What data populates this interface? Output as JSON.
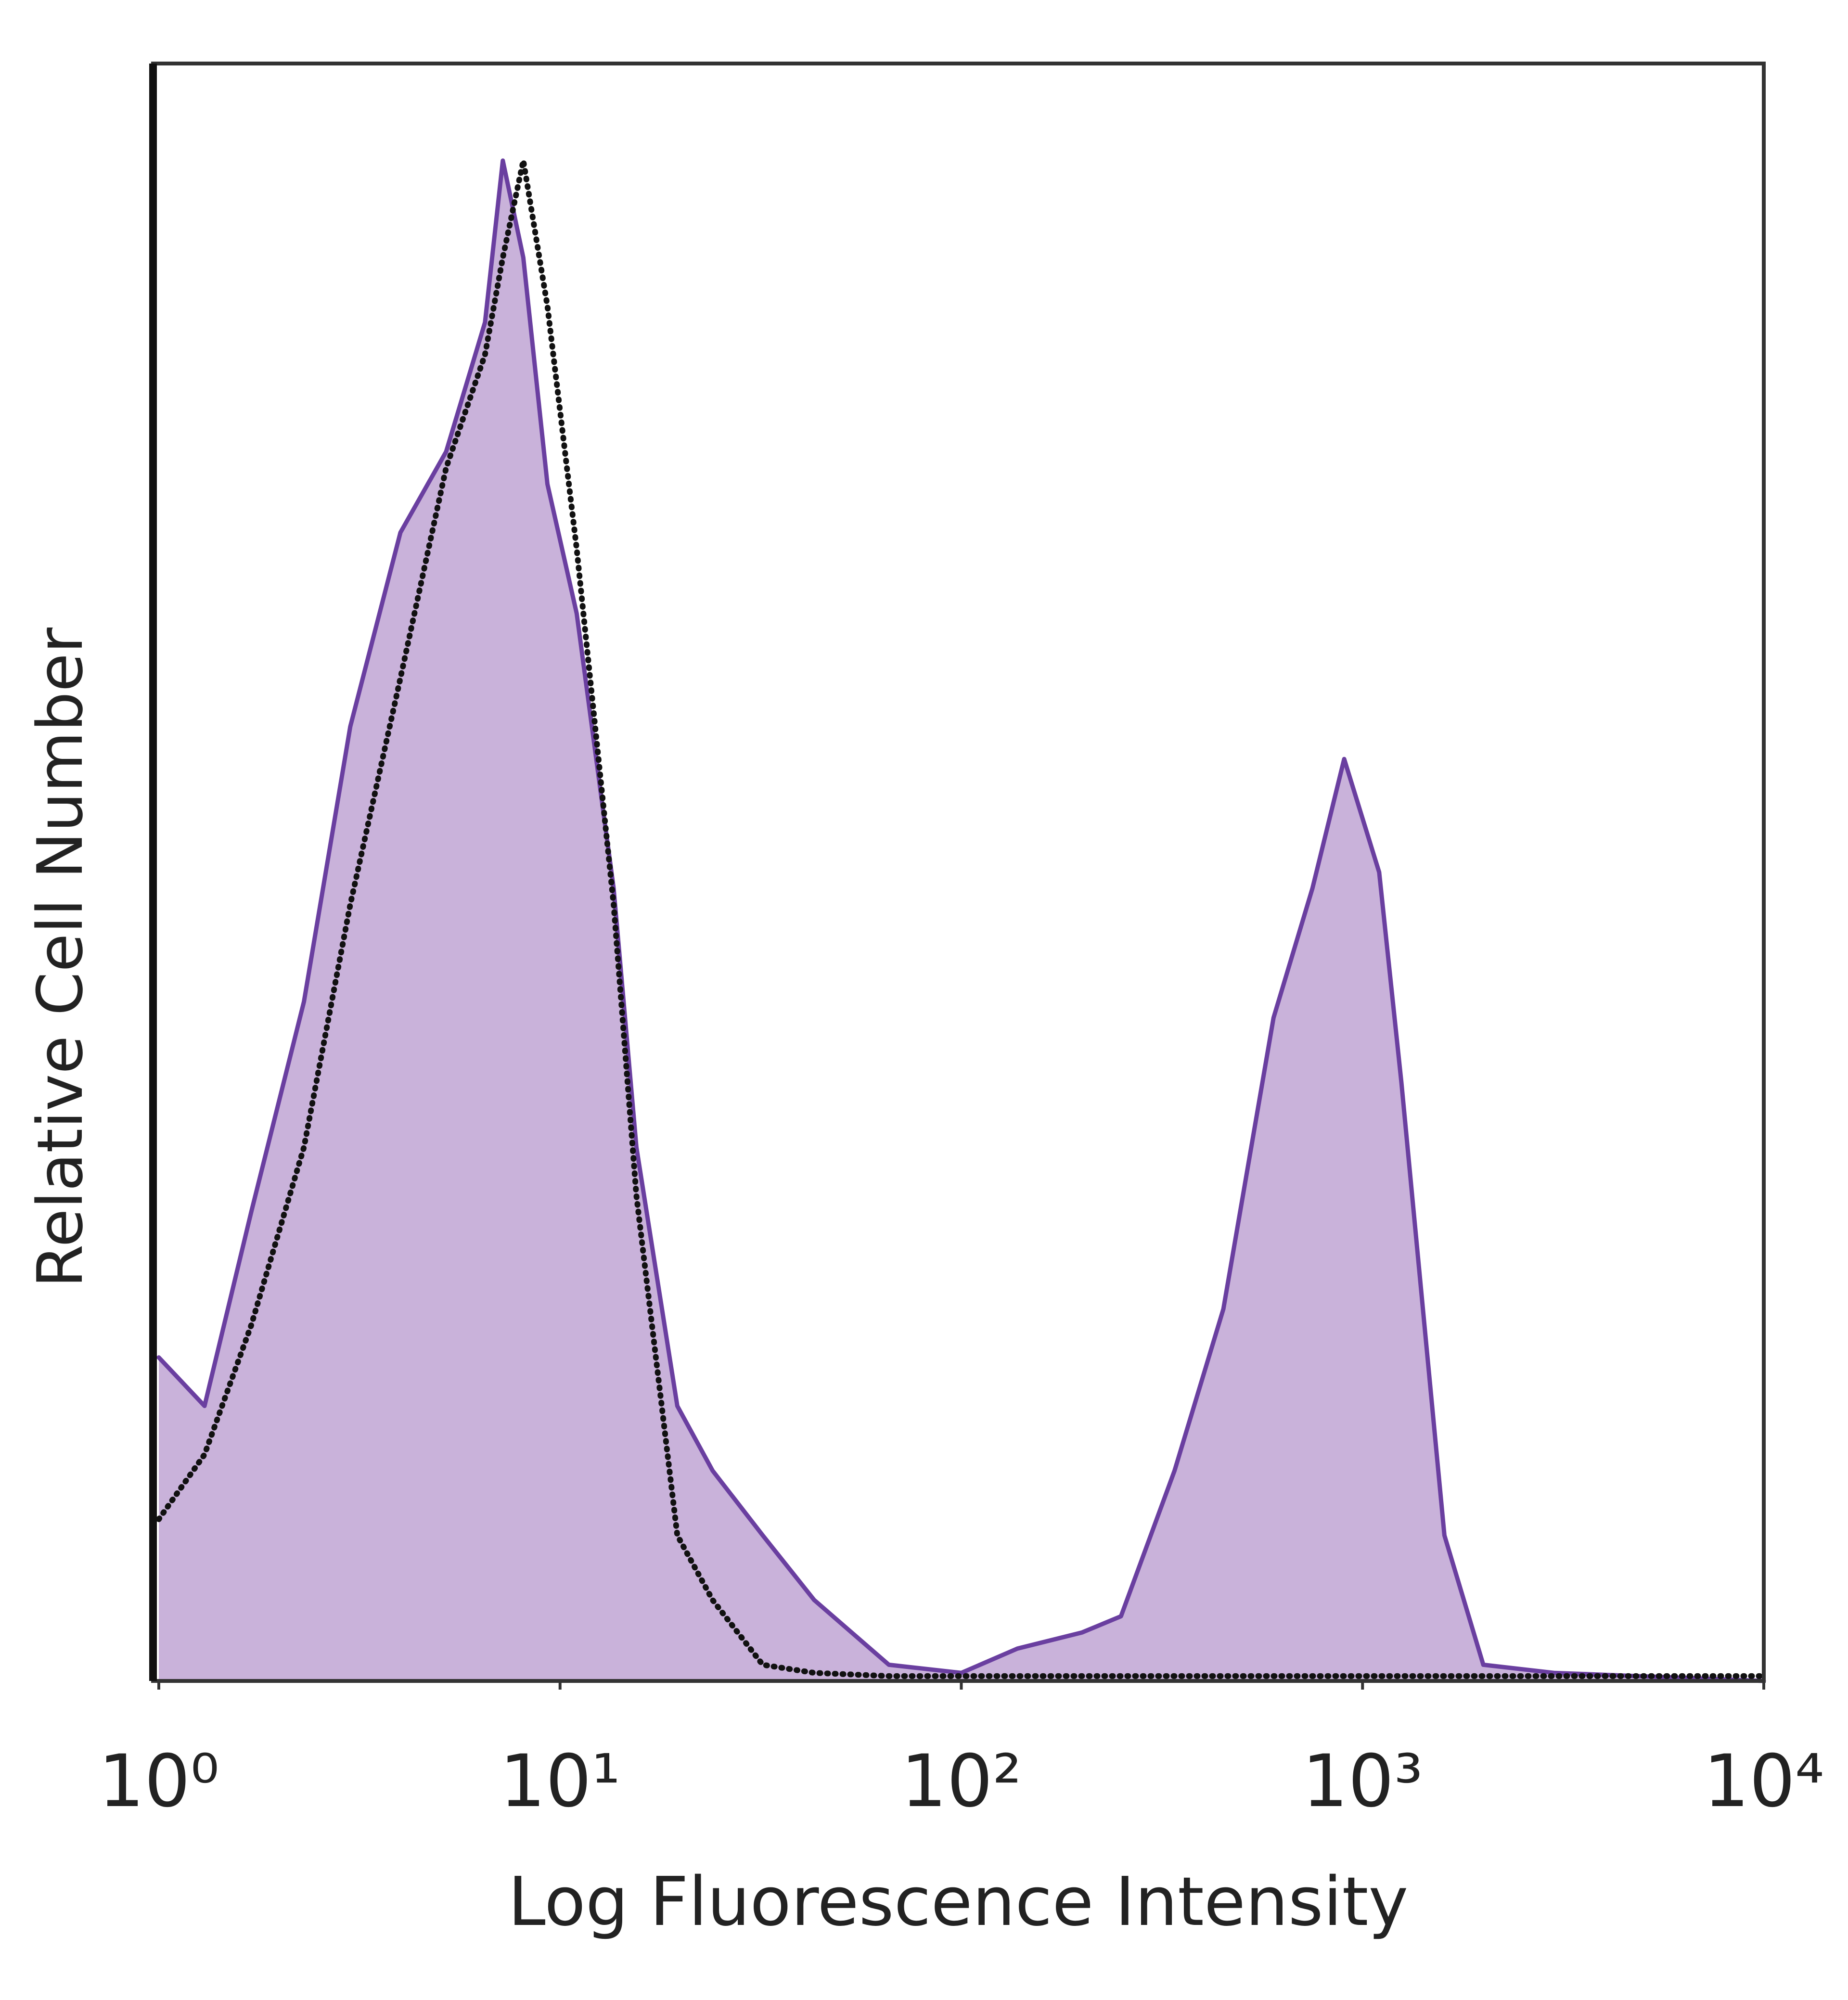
{
  "chart_data": {
    "type": "histogram-line",
    "xlabel": "Log Fluorescence Intensity",
    "ylabel": "Relative Cell Number",
    "xscale": "log",
    "xlim": [
      1,
      10000
    ],
    "xticks": [
      {
        "value": 1,
        "label": "10⁰"
      },
      {
        "value": 10,
        "label": "10¹"
      },
      {
        "value": 100,
        "label": "10²"
      },
      {
        "value": 1000,
        "label": "10³"
      },
      {
        "value": 10000,
        "label": "10⁴"
      }
    ],
    "ylim": [
      0,
      100
    ],
    "x": [
      1,
      1.3,
      1.7,
      2.3,
      3,
      4,
      5.2,
      6.5,
      7.2,
      8.1,
      9.3,
      11,
      13.6,
      15.5,
      19.6,
      24,
      32,
      43,
      66,
      100,
      138,
      200,
      250,
      340,
      450,
      600,
      750,
      900,
      1100,
      1250,
      1600,
      2000,
      3000,
      10000
    ],
    "series": [
      {
        "color": "#6a3fa0",
        "fill": "#c9b2da",
        "style": "solid",
        "values": [
          20,
          17,
          29,
          42,
          59,
          71,
          76,
          84,
          94,
          88,
          74,
          66,
          49,
          33,
          17,
          13,
          9,
          5,
          1,
          0.5,
          2,
          3,
          4,
          13,
          23,
          41,
          49,
          57,
          50,
          37,
          9,
          1,
          0.5,
          0
        ]
      },
      {
        "color": "#111111",
        "style": "dotted",
        "values": [
          10,
          14,
          22,
          33,
          48,
          62,
          75,
          82,
          88,
          94,
          85,
          70,
          48,
          30,
          9,
          5,
          1,
          0.5,
          0.3,
          0.3,
          0.3,
          0.3,
          0.3,
          0.3,
          0.3,
          0.3,
          0.3,
          0.3,
          0.3,
          0.3,
          0.3,
          0.3,
          0.3,
          0.3
        ]
      }
    ]
  }
}
